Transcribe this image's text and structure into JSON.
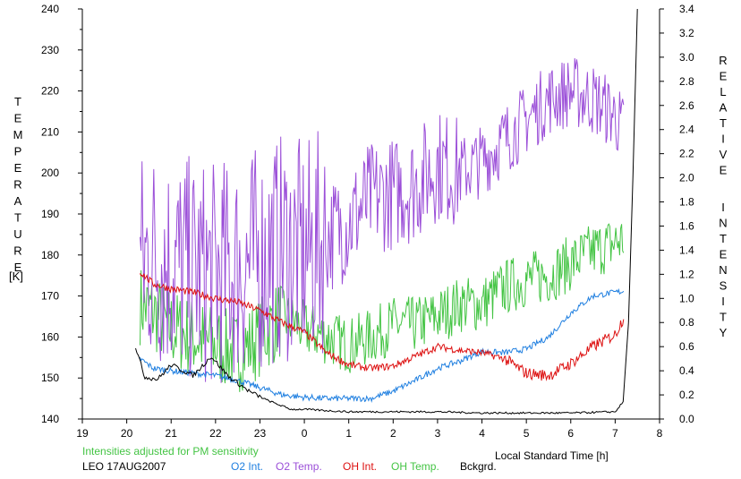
{
  "chart_data": {
    "type": "line",
    "xlabel": "Local Standard Time [h]",
    "ylabel_left": "TEMPERATURE",
    "ylabel_left_unit": "[K]",
    "ylabel_right": "RELATIVE INTENSITY",
    "xlim": [
      19,
      8
    ],
    "x_ticks": [
      "19",
      "20",
      "21",
      "22",
      "23",
      "0",
      "1",
      "2",
      "3",
      "4",
      "5",
      "6",
      "7",
      "8"
    ],
    "ylim_left": [
      140,
      240
    ],
    "y_ticks_left": [
      "140",
      "150",
      "160",
      "170",
      "180",
      "190",
      "200",
      "210",
      "220",
      "230",
      "240"
    ],
    "ylim_right": [
      0.0,
      3.4
    ],
    "y_ticks_right": [
      "0.0",
      "0.2",
      "0.4",
      "0.6",
      "0.8",
      "1.0",
      "1.2",
      "1.4",
      "1.6",
      "1.8",
      "2.0",
      "2.2",
      "2.4",
      "2.6",
      "2.8",
      "3.0",
      "3.2",
      "3.4"
    ],
    "grid": false,
    "annotation": "Intensities adjusted for PM sensitivity",
    "station": "LEO 17AUG2007",
    "series": [
      {
        "name": "O2 Int.",
        "color": "#1f7fe0",
        "axis": "right",
        "x": [
          20.3,
          20.6,
          21.0,
          21.5,
          22.0,
          22.5,
          23.0,
          23.5,
          24.0,
          24.5,
          25.0,
          25.5,
          26.0,
          26.5,
          27.0,
          27.5,
          28.0,
          28.5,
          29.0,
          29.5,
          30.0,
          30.5,
          31.0,
          31.2
        ],
        "y": [
          0.5,
          0.42,
          0.4,
          0.38,
          0.36,
          0.32,
          0.26,
          0.2,
          0.18,
          0.17,
          0.17,
          0.17,
          0.23,
          0.32,
          0.42,
          0.48,
          0.56,
          0.55,
          0.58,
          0.68,
          0.88,
          1.02,
          1.05,
          1.06
        ]
      },
      {
        "name": "O2 Temp.",
        "color": "#9b4fd8",
        "axis": "left",
        "x": [
          20.3,
          20.6,
          21.0,
          21.5,
          22.0,
          22.5,
          23.0,
          23.5,
          24.0,
          24.5,
          25.0,
          25.5,
          26.0,
          26.5,
          27.0,
          27.5,
          28.0,
          28.5,
          29.0,
          29.5,
          30.0,
          30.5,
          31.0,
          31.2
        ],
        "y": [
          178,
          180,
          178,
          176,
          175,
          177,
          179,
          182,
          180,
          184,
          188,
          194,
          195,
          197,
          202,
          200,
          203,
          208,
          213,
          218,
          220,
          218,
          214,
          210
        ]
      },
      {
        "name": "OH Int.",
        "color": "#dd1111",
        "axis": "right",
        "x": [
          20.3,
          20.6,
          21.0,
          21.5,
          22.0,
          22.5,
          23.0,
          23.5,
          24.0,
          24.5,
          25.0,
          25.5,
          26.0,
          26.5,
          27.0,
          27.5,
          28.0,
          28.5,
          29.0,
          29.5,
          30.0,
          30.5,
          31.0,
          31.2
        ],
        "y": [
          1.22,
          1.12,
          1.08,
          1.05,
          1.0,
          0.97,
          0.9,
          0.8,
          0.72,
          0.55,
          0.45,
          0.42,
          0.44,
          0.52,
          0.6,
          0.57,
          0.55,
          0.5,
          0.38,
          0.36,
          0.46,
          0.6,
          0.7,
          0.85
        ]
      },
      {
        "name": "OH Temp.",
        "color": "#44c444",
        "axis": "left",
        "x": [
          20.3,
          20.6,
          21.0,
          21.5,
          22.0,
          22.5,
          23.0,
          23.5,
          24.0,
          24.5,
          25.0,
          25.5,
          26.0,
          26.5,
          27.0,
          27.5,
          28.0,
          28.5,
          29.0,
          29.5,
          30.0,
          30.5,
          31.0,
          31.2
        ],
        "y": [
          168,
          166,
          162,
          160,
          158,
          156,
          160,
          165,
          162,
          160,
          158,
          160,
          163,
          163,
          165,
          168,
          168,
          172,
          174,
          175,
          178,
          181,
          183,
          184
        ]
      },
      {
        "name": "Bckgrd.",
        "color": "#000000",
        "axis": "right",
        "x": [
          20.2,
          20.4,
          20.7,
          21.0,
          21.5,
          21.9,
          22.3,
          22.8,
          23.2,
          23.7,
          24.0,
          24.5,
          25.0,
          26.0,
          27.0,
          28.0,
          29.0,
          30.0,
          31.0,
          31.2,
          31.3,
          31.4,
          31.5
        ],
        "y": [
          0.6,
          0.35,
          0.33,
          0.45,
          0.36,
          0.52,
          0.35,
          0.22,
          0.15,
          0.08,
          0.08,
          0.07,
          0.06,
          0.06,
          0.06,
          0.05,
          0.05,
          0.05,
          0.06,
          0.15,
          0.8,
          2.0,
          3.4
        ]
      }
    ]
  }
}
